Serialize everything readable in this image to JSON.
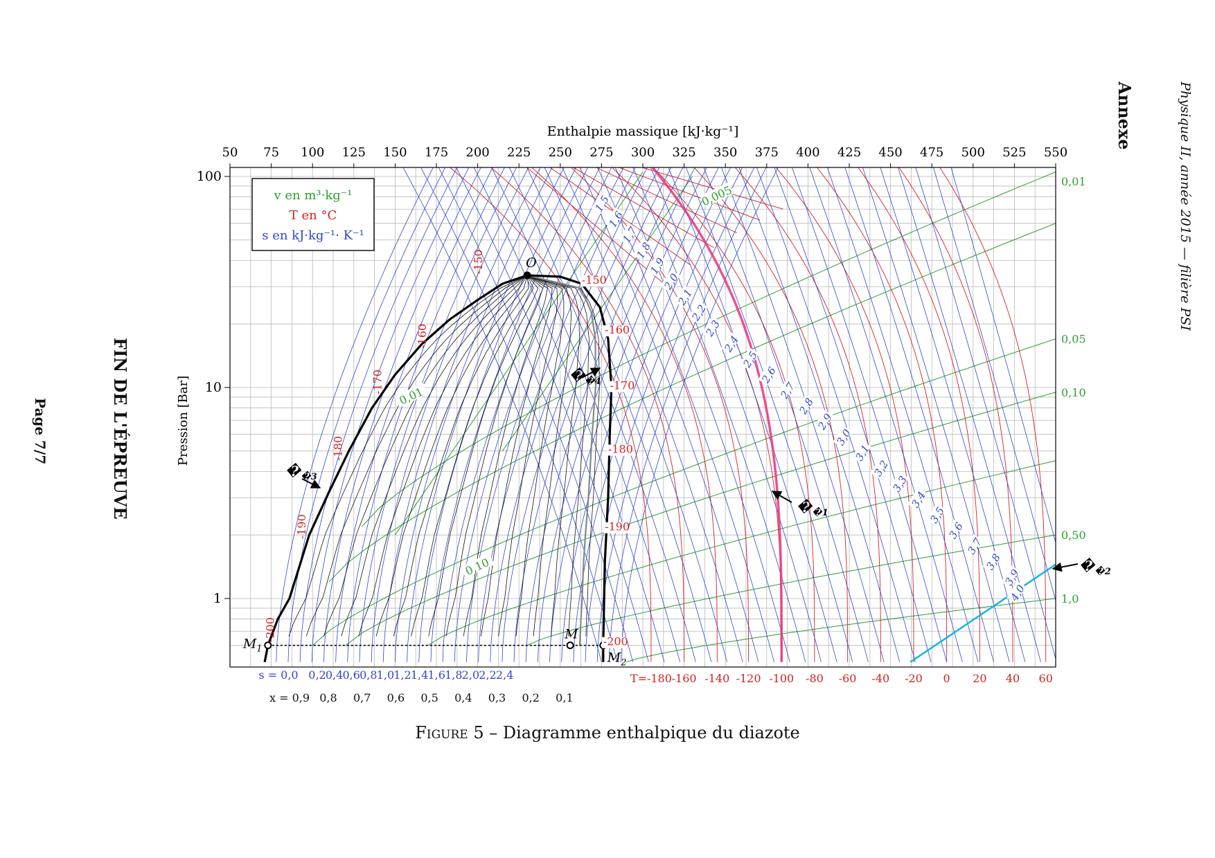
{
  "page": {
    "header_right": "Physique II, année 2015 — filière PSI",
    "annex_label": "Annexe",
    "end_label": "FIN DE L'ÉPREUVE",
    "page_label": "Page 7/7",
    "caption_prefix": "Figure 5",
    "caption_text": " – Diagramme enthalpique du diazote"
  },
  "chart_data": {
    "type": "line",
    "title": "",
    "xlabel": "Enthalpie massique [kJ·kg⁻¹]",
    "ylabel": "Pression [Bar]",
    "xlim": [
      50,
      550
    ],
    "ylim": [
      0.5,
      110
    ],
    "yscale": "log",
    "grid": true,
    "x_ticks": [
      "50",
      "75",
      "100",
      "125",
      "150",
      "175",
      "200",
      "225",
      "250",
      "275",
      "300",
      "325",
      "350",
      "375",
      "400",
      "425",
      "450",
      "475",
      "500",
      "525",
      "550"
    ],
    "y_ticks": [
      {
        "value": 1,
        "label": "1"
      },
      {
        "value": 10,
        "label": "10"
      },
      {
        "value": 100,
        "label": "100"
      }
    ],
    "legend": {
      "position": "top-left",
      "entries": [
        {
          "text": "v en  m³·kg⁻¹",
          "color": "#2e9e2e"
        },
        {
          "text": "T en °C",
          "color": "#d42020"
        },
        {
          "text": "s en  kJ·kg⁻¹· K⁻¹",
          "color": "#2f47c9"
        }
      ]
    },
    "colors": {
      "saturation": "#000000",
      "isotherm": "#d42020",
      "isochore": "#2e9e2e",
      "isentrope": "#2f47c9",
      "quality": "#111111",
      "C1": "#e8347a",
      "C2": "#12b5e0",
      "C4": "#7f8a8a"
    },
    "saturation_curve": {
      "liquid": [
        [
          73,
          0.6
        ],
        [
          79,
          0.8
        ],
        [
          86,
          1.0
        ],
        [
          98,
          2.0
        ],
        [
          110,
          3.2
        ],
        [
          122,
          5
        ],
        [
          136,
          8
        ],
        [
          150,
          11.5
        ],
        [
          166,
          16
        ],
        [
          183,
          21
        ],
        [
          200,
          26
        ],
        [
          215,
          31
        ],
        [
          230,
          34
        ]
      ],
      "vapor": [
        [
          230,
          34
        ],
        [
          250,
          33.5
        ],
        [
          263,
          31
        ],
        [
          274,
          24
        ],
        [
          279,
          17
        ],
        [
          281,
          10
        ],
        [
          280,
          6
        ],
        [
          279,
          3
        ],
        [
          277,
          1.5
        ],
        [
          276,
          0.6
        ]
      ]
    },
    "isotherm_labels": [
      "T=-180",
      "-160",
      "-140",
      "-120",
      "-100",
      "-80",
      "-60",
      "-40",
      "-20",
      "0",
      "20",
      "40",
      "60"
    ],
    "isotherm_values": [
      -180,
      -160,
      -140,
      -120,
      -100,
      -80,
      -60,
      -40,
      -20,
      0,
      20,
      40,
      60
    ],
    "isotherm_bottom_h": [
      305,
      325,
      345,
      364,
      384,
      404,
      424,
      444,
      464,
      484,
      504,
      524,
      544
    ],
    "isotherm_sat_labels": [
      {
        "text": "-150",
        "h": 263,
        "p": 31
      },
      {
        "text": "-160",
        "h": 277,
        "p": 18
      },
      {
        "text": "-170",
        "h": 280,
        "p": 9.8
      },
      {
        "text": "-180",
        "h": 279,
        "p": 4.9
      },
      {
        "text": "-190",
        "h": 277,
        "p": 2.1
      },
      {
        "text": "-200",
        "h": 276,
        "p": 0.6
      },
      {
        "text": "-150",
        "h": 201,
        "p": 36
      },
      {
        "text": "-160",
        "h": 167,
        "p": 16
      },
      {
        "text": "-170",
        "h": 140,
        "p": 9.7
      },
      {
        "text": "-180",
        "h": 116,
        "p": 4.7
      },
      {
        "text": "-190",
        "h": 94,
        "p": 2.0
      },
      {
        "text": "-200",
        "h": 75,
        "p": 0.65
      }
    ],
    "entropy_labels": [
      "1,5",
      "1,6",
      "1,7",
      "1,8",
      "1,9",
      "2,0",
      "2,1",
      "2,2",
      "2,3",
      "2,4",
      "2,5",
      "2,6",
      "2,7",
      "2,8",
      "2,9",
      "3,0",
      "3,1",
      "3,2",
      "3,3",
      "3,4",
      "3,5",
      "3,6",
      "3,7",
      "3,8",
      "3,9",
      "4,0"
    ],
    "entropy_bottom_labels": [
      "s = 0,0",
      "0,2",
      "0,4",
      "0,6",
      "0,8",
      "1,0",
      "1,2",
      "1,4",
      "1,6",
      "1,8",
      "2,0",
      "2,2",
      "2,4"
    ],
    "quality_labels": [
      "x = 0,9",
      "0,8",
      "0,7",
      "0,6",
      "0,5",
      "0,4",
      "0,3",
      "0,2",
      "0,1"
    ],
    "isochore_labels": [
      {
        "text": "0,005",
        "h": 345,
        "p": 80
      },
      {
        "text": "0,01",
        "h": 160,
        "p": 9
      },
      {
        "text": "0,10",
        "h": 200,
        "p": 1.4
      },
      {
        "text": "0,01",
        "h": 555,
        "p": 95
      },
      {
        "text": "0,05",
        "h": 555,
        "p": 17
      },
      {
        "text": "0,10",
        "h": 555,
        "p": 9.5
      },
      {
        "text": "0,50",
        "h": 555,
        "p": 2.0
      },
      {
        "text": "1,0",
        "h": 555,
        "p": 1.0
      }
    ],
    "points": [
      {
        "name": "O",
        "h": 230,
        "p": 34
      },
      {
        "name": "M1",
        "h": 73,
        "p": 0.6
      },
      {
        "name": "M",
        "h": 256,
        "p": 0.6
      },
      {
        "name": "M2",
        "h": 276,
        "p": 0.6
      }
    ],
    "curve_labels": [
      {
        "name": "C1",
        "text": "𝒞1"
      },
      {
        "name": "C2",
        "text": "𝒞2"
      },
      {
        "name": "C3",
        "text": "𝒞3"
      },
      {
        "name": "C4",
        "text": "𝒞4"
      }
    ]
  }
}
